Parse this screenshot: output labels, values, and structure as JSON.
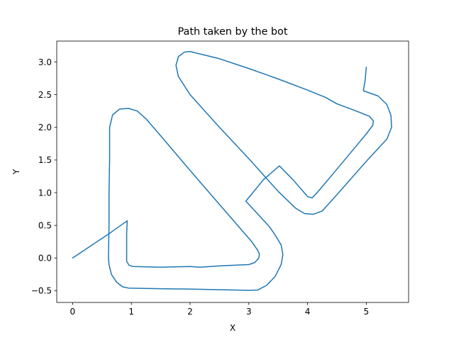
{
  "chart_data": {
    "type": "line",
    "title": "Path taken by the bot",
    "xlabel": "X",
    "ylabel": "Y",
    "xlim": [
      -0.27,
      5.72
    ],
    "ylim": [
      -0.68,
      3.32
    ],
    "xticks": [
      0,
      1,
      2,
      3,
      4,
      5
    ],
    "yticks": [
      -0.5,
      0.0,
      0.5,
      1.0,
      1.5,
      2.0,
      2.5,
      3.0
    ],
    "xtick_labels": [
      "0",
      "1",
      "2",
      "3",
      "4",
      "5"
    ],
    "ytick_labels": [
      "−0.5",
      "0.0",
      "0.5",
      "1.0",
      "1.5",
      "2.0",
      "2.5",
      "3.0"
    ],
    "grid": false,
    "series": [
      {
        "color": "#1f77b4",
        "points": [
          [
            0.0,
            0.0
          ],
          [
            0.3,
            0.18
          ],
          [
            0.6,
            0.36
          ],
          [
            0.93,
            0.57
          ],
          [
            0.92,
            0.38
          ],
          [
            0.92,
            0.15
          ],
          [
            0.92,
            -0.05
          ],
          [
            0.96,
            -0.11
          ],
          [
            1.03,
            -0.13
          ],
          [
            1.5,
            -0.14
          ],
          [
            2.0,
            -0.13
          ],
          [
            2.17,
            -0.14
          ],
          [
            2.5,
            -0.12
          ],
          [
            3.0,
            -0.1
          ],
          [
            3.1,
            -0.07
          ],
          [
            3.17,
            0.0
          ],
          [
            3.18,
            0.06
          ],
          [
            3.15,
            0.12
          ],
          [
            3.05,
            0.25
          ],
          [
            2.5,
            0.82
          ],
          [
            2.0,
            1.34
          ],
          [
            1.5,
            1.87
          ],
          [
            1.25,
            2.13
          ],
          [
            1.1,
            2.25
          ],
          [
            0.95,
            2.29
          ],
          [
            0.8,
            2.28
          ],
          [
            0.68,
            2.19
          ],
          [
            0.63,
            2.0
          ],
          [
            0.63,
            1.5
          ],
          [
            0.62,
            1.0
          ],
          [
            0.62,
            0.5
          ],
          [
            0.61,
            0.0
          ],
          [
            0.62,
            -0.1
          ],
          [
            0.66,
            -0.25
          ],
          [
            0.75,
            -0.37
          ],
          [
            0.85,
            -0.44
          ],
          [
            0.95,
            -0.46
          ],
          [
            1.5,
            -0.47
          ],
          [
            2.0,
            -0.475
          ],
          [
            2.5,
            -0.485
          ],
          [
            3.0,
            -0.495
          ],
          [
            3.15,
            -0.49
          ],
          [
            3.3,
            -0.42
          ],
          [
            3.45,
            -0.28
          ],
          [
            3.55,
            -0.1
          ],
          [
            3.58,
            0.05
          ],
          [
            3.55,
            0.2
          ],
          [
            3.45,
            0.35
          ],
          [
            3.35,
            0.48
          ],
          [
            2.95,
            0.87
          ],
          [
            3.25,
            1.2
          ],
          [
            3.52,
            1.41
          ],
          [
            3.75,
            1.2
          ],
          [
            4.0,
            0.94
          ],
          [
            4.08,
            0.92
          ],
          [
            4.2,
            1.04
          ],
          [
            4.5,
            1.36
          ],
          [
            5.0,
            1.9
          ],
          [
            5.11,
            2.03
          ],
          [
            5.12,
            2.1
          ],
          [
            5.05,
            2.17
          ],
          [
            4.8,
            2.26
          ],
          [
            4.5,
            2.36
          ],
          [
            4.3,
            2.46
          ],
          [
            4.0,
            2.57
          ],
          [
            3.5,
            2.74
          ],
          [
            3.0,
            2.9
          ],
          [
            2.5,
            3.05
          ],
          [
            2.0,
            3.16
          ],
          [
            1.9,
            3.15
          ],
          [
            1.8,
            3.08
          ],
          [
            1.76,
            2.95
          ],
          [
            1.8,
            2.78
          ],
          [
            2.0,
            2.5
          ],
          [
            2.5,
            2.0
          ],
          [
            3.0,
            1.52
          ],
          [
            3.5,
            1.02
          ],
          [
            3.8,
            0.76
          ],
          [
            3.95,
            0.68
          ],
          [
            4.1,
            0.67
          ],
          [
            4.25,
            0.72
          ],
          [
            4.5,
            0.97
          ],
          [
            5.0,
            1.48
          ],
          [
            5.35,
            1.82
          ],
          [
            5.43,
            2.0
          ],
          [
            5.42,
            2.18
          ],
          [
            5.35,
            2.35
          ],
          [
            5.2,
            2.48
          ],
          [
            4.95,
            2.56
          ],
          [
            4.98,
            2.72
          ],
          [
            5.0,
            2.92
          ]
        ]
      }
    ]
  }
}
